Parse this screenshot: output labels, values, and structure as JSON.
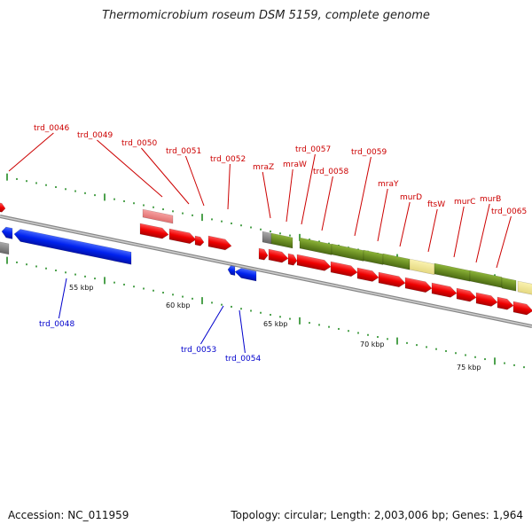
{
  "title": "Thermomicrobium roseum DSM 5159, complete genome",
  "footer": {
    "accession": "Accession: NC_011959",
    "topology": "Topology: circular; Length: 2,003,006 bp; Genes: 1,964"
  },
  "scale": {
    "kbp_labels": [
      "55 kbp",
      "60 kbp",
      "65 kbp",
      "70 kbp",
      "75 kbp"
    ]
  },
  "genes_forward": [
    "trd_0046",
    "trd_0049",
    "trd_0050",
    "trd_0051",
    "trd_0052",
    "mraZ",
    "mraW",
    "trd_0057",
    "trd_0058",
    "trd_0059",
    "mraY",
    "murD",
    "ftsW",
    "murC",
    "murB",
    "trd_0065"
  ],
  "genes_reverse": [
    "trd_0048",
    "trd_0053",
    "trd_0054"
  ],
  "colors": {
    "forward_cds": "#ee0000",
    "reverse_cds": "#0022ee",
    "gene_olive": "#6b8e23",
    "gene_pale": "#eee58f",
    "gene_pink": "#f08080",
    "gene_gray": "#888888",
    "backbone": "#999999",
    "tick": "#228b22",
    "forward_label": "#cc0000",
    "reverse_label": "#0000cc"
  }
}
